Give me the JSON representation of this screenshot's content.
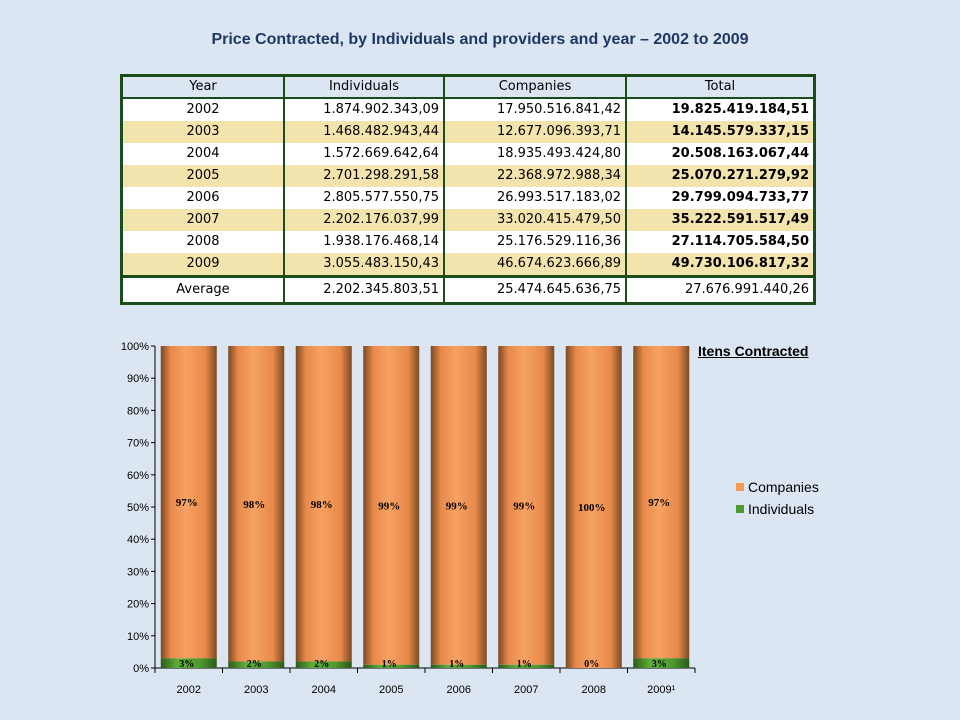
{
  "title": "Price Contracted, by Individuals and providers and year – 2002 to 2009",
  "table": {
    "headers": [
      "Year",
      "Individuals",
      "Companies",
      "Total"
    ],
    "rows": [
      [
        "2002",
        "1.874.902.343,09",
        "17.950.516.841,42",
        "19.825.419.184,51"
      ],
      [
        "2003",
        "1.468.482.943,44",
        "12.677.096.393,71",
        "14.145.579.337,15"
      ],
      [
        "2004",
        "1.572.669.642,64",
        "18.935.493.424,80",
        "20.508.163.067,44"
      ],
      [
        "2005",
        "2.701.298.291,58",
        "22.368.972.988,34",
        "25.070.271.279,92"
      ],
      [
        "2006",
        "2.805.577.550,75",
        "26.993.517.183,02",
        "29.799.094.733,77"
      ],
      [
        "2007",
        "2.202.176.037,99",
        "33.020.415.479,50",
        "35.222.591.517,49"
      ],
      [
        "2008",
        "1.938.176.468,14",
        "25.176.529.116,36",
        "27.114.705.584,50"
      ],
      [
        "2009",
        "3.055.483.150,43",
        "46.674.623.666,89",
        "49.730.106.817,32"
      ]
    ],
    "average": [
      "Average",
      "2.202.345.803,51",
      "25.474.645.636,75",
      "27.676.991.440,26"
    ]
  },
  "chart_data": {
    "type": "bar",
    "stacked": true,
    "percent": true,
    "title": "Itens Contracted",
    "categories": [
      "2002",
      "2003",
      "2004",
      "2005",
      "2006",
      "2007",
      "2008",
      "2009¹"
    ],
    "series": [
      {
        "name": "Individuals",
        "values": [
          3,
          2,
          2,
          1,
          1,
          1,
          0,
          3
        ],
        "labels": [
          "3%",
          "2%",
          "2%",
          "1%",
          "1%",
          "1%",
          "0%",
          "3%"
        ],
        "color": "#4f9a2f"
      },
      {
        "name": "Companies",
        "values": [
          97,
          98,
          98,
          99,
          99,
          99,
          100,
          97
        ],
        "labels": [
          "97%",
          "98%",
          "98%",
          "99%",
          "99%",
          "99%",
          "100%",
          "97%"
        ],
        "color": "#f39a55"
      }
    ],
    "yticks": [
      "0%",
      "10%",
      "20%",
      "30%",
      "40%",
      "50%",
      "60%",
      "70%",
      "80%",
      "90%",
      "100%"
    ],
    "ylim": [
      0,
      100
    ],
    "legend_position": "right"
  }
}
